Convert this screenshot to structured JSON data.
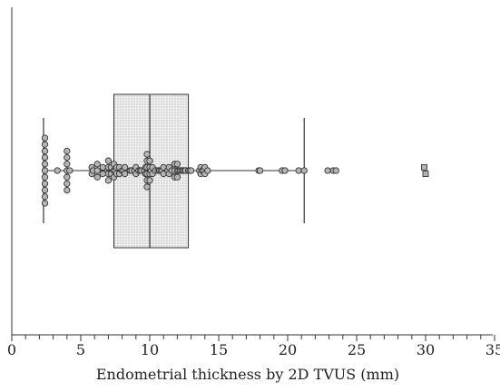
{
  "chart_data": {
    "type": "boxplot",
    "title": "",
    "xlabel": "Endometrial thickness by 2D TVUS (mm)",
    "ylabel": "",
    "xlim": [
      0,
      35
    ],
    "x_ticks": [
      0,
      5,
      10,
      15,
      20,
      25,
      30,
      35
    ],
    "x_tick_labels": [
      "0",
      "5",
      "10",
      "15",
      "20",
      "25",
      "30",
      "35"
    ],
    "x_minor_step": 1,
    "grid": false,
    "box": {
      "whisker_low": 2.3,
      "q1": 7.4,
      "median": 10,
      "q3": 12.8,
      "whisker_high": 21.2
    },
    "points": [
      2.4,
      2.4,
      2.4,
      2.4,
      2.4,
      2.4,
      2.4,
      2.4,
      2.4,
      2.4,
      2.4,
      3.3,
      4.0,
      4.0,
      4.0,
      4.0,
      4.0,
      4.0,
      4.0,
      4.2,
      5.8,
      5.8,
      5.9,
      6.2,
      6.2,
      6.2,
      6.6,
      6.6,
      7.0,
      7.0,
      7.0,
      7.0,
      7.2,
      7.2,
      7.4,
      7.4,
      7.4,
      7.5,
      7.6,
      7.6,
      7.8,
      7.8,
      8.0,
      8.1,
      8.2,
      8.2,
      8.6,
      8.7,
      8.9,
      9.0,
      9.0,
      9.2,
      9.3,
      9.4,
      9.6,
      9.7,
      9.7,
      9.8,
      9.8,
      9.8,
      9.8,
      9.8,
      9.8,
      10.0,
      10.0,
      10.0,
      10.0,
      10.1,
      10.2,
      10.2,
      10.4,
      10.6,
      10.7,
      10.8,
      10.9,
      11.0,
      11.0,
      11.3,
      11.4,
      11.4,
      11.6,
      11.8,
      11.8,
      11.8,
      12.0,
      12.0,
      12.0,
      12.1,
      12.2,
      12.3,
      12.4,
      12.5,
      12.6,
      12.8,
      12.9,
      13.0,
      13.6,
      13.7,
      13.7,
      13.8,
      13.9,
      14.0,
      14.0,
      14.2,
      17.9,
      18.0,
      19.6,
      19.8,
      20.8,
      21.2,
      22.9,
      23.3,
      23.5
    ],
    "outliers": [
      29.9,
      30.0
    ]
  }
}
